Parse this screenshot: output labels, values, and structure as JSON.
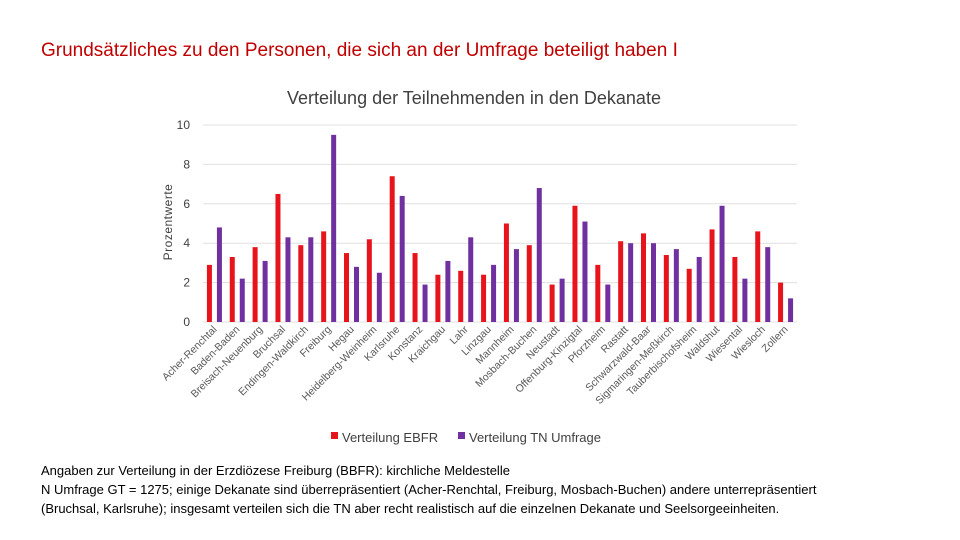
{
  "headline": "Grundsätzliches zu den Personen, die sich an der Umfrage beteiligt haben I",
  "footnote": {
    "line1": "Angaben zur Verteilung in der Erzdiözese Freiburg (BBFR): kirchliche Meldestelle",
    "line2": "N Umfrage GT = 1275; einige Dekanate sind überrepräsentiert (Acher-Renchtal, Freiburg, Mosbach-Buchen) andere unterrepräsentiert",
    "line3": "(Bruchsal, Karlsruhe); insgesamt verteilen sich die TN aber recht realistisch auf die einzelnen Dekanate und Seelsorgeeinheiten."
  },
  "chart_data": {
    "type": "bar",
    "title": "Verteilung der Teilnehmenden in den Dekanate",
    "xlabel": "",
    "ylabel": "Prozentwerte",
    "ylim": [
      0,
      10
    ],
    "yticks": [
      0,
      2,
      4,
      6,
      8,
      10
    ],
    "grid": true,
    "legend_position": "bottom",
    "categories": [
      "Acher-Renchtal",
      "Baden-Baden",
      "Breisach-Neuenburg",
      "Bruchsal",
      "Endingen-Waldkirch",
      "Freiburg",
      "Hegau",
      "Heidelberg-Weinheim",
      "Karlsruhe",
      "Konstanz",
      "Kraichgau",
      "Lahr",
      "Linzgau",
      "Mannheim",
      "Mosbach-Buchen",
      "Neustadt",
      "Offenburg-Kinzigtal",
      "Pforzheim",
      "Rastatt",
      "Schwarzwald-Baar",
      "Sigmaringen-Meßkirch",
      "Tauberbischofsheim",
      "Waldshut",
      "Wiesental",
      "Wiesloch",
      "Zollern"
    ],
    "series": [
      {
        "name": "Verteilung EBFR",
        "color": "#e8141b",
        "values": [
          2.9,
          3.3,
          3.8,
          6.5,
          3.9,
          4.6,
          3.5,
          4.2,
          7.4,
          3.5,
          2.4,
          2.6,
          2.4,
          5.0,
          3.9,
          1.9,
          5.9,
          2.9,
          4.1,
          4.5,
          3.4,
          2.7,
          4.7,
          3.3,
          4.6,
          2.0
        ]
      },
      {
        "name": "Verteilung TN Umfrage",
        "color": "#7030a0",
        "values": [
          4.8,
          2.2,
          3.1,
          4.3,
          4.3,
          9.5,
          2.8,
          2.5,
          6.4,
          1.9,
          3.1,
          4.3,
          2.9,
          3.7,
          6.8,
          2.2,
          5.1,
          1.9,
          4.0,
          4.0,
          3.7,
          3.3,
          5.9,
          2.2,
          3.8,
          1.2
        ]
      }
    ]
  }
}
